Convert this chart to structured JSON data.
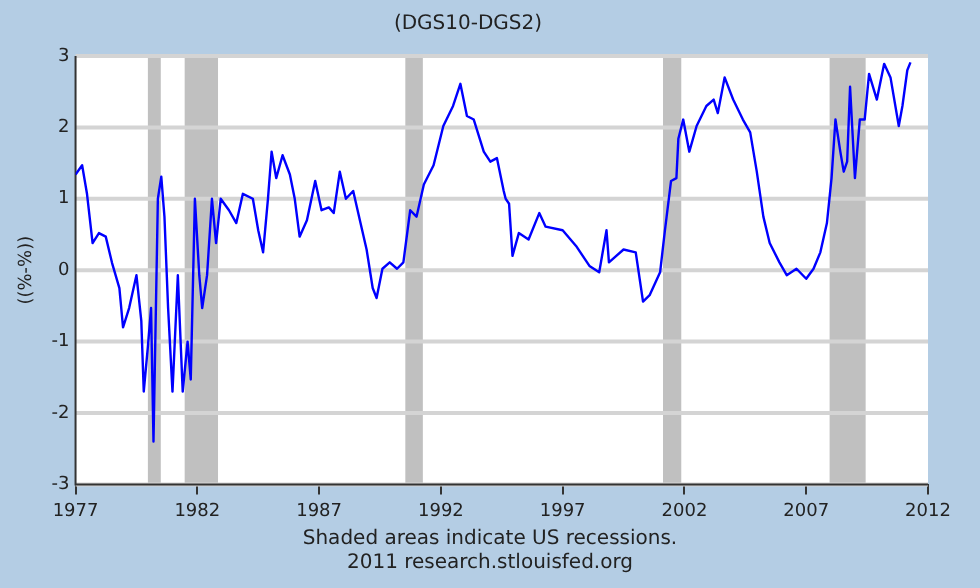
{
  "chart_data": {
    "type": "line",
    "title": "(DGS10-DGS2)",
    "ylabel": "((%-%))",
    "annotations": [
      "Shaded areas indicate US recessions.",
      "2011 research.stlouisfed.org"
    ],
    "xlim": [
      1977,
      2012
    ],
    "xticks": [
      1977,
      1982,
      1987,
      1992,
      1997,
      2002,
      2007,
      2012
    ],
    "ylim": [
      -3,
      3
    ],
    "yticks": [
      -3,
      -2,
      -1,
      0,
      1,
      2,
      3
    ],
    "grid": "y",
    "legend": false,
    "marker": "none",
    "line_style": "solid",
    "bands": [
      {
        "axis": "x",
        "from": 1979.97,
        "to": 1980.5,
        "color": "#c0c0c0"
      },
      {
        "axis": "x",
        "from": 1981.48,
        "to": 1982.85,
        "color": "#c0c0c0"
      },
      {
        "axis": "x",
        "from": 1990.54,
        "to": 1991.26,
        "color": "#c0c0c0"
      },
      {
        "axis": "x",
        "from": 2001.12,
        "to": 2001.87,
        "color": "#c0c0c0"
      },
      {
        "axis": "x",
        "from": 2007.96,
        "to": 2009.44,
        "color": "#c0c0c0"
      }
    ],
    "series": [
      {
        "color": "#0000ff",
        "x": [
          1977.0,
          1977.27,
          1977.47,
          1977.7,
          1977.96,
          1978.24,
          1978.5,
          1978.8,
          1978.95,
          1979.2,
          1979.5,
          1979.7,
          1979.8,
          1979.97,
          1980.1,
          1980.2,
          1980.38,
          1980.52,
          1980.65,
          1980.8,
          1980.98,
          1981.2,
          1981.4,
          1981.6,
          1981.73,
          1981.9,
          1982.08,
          1982.2,
          1982.4,
          1982.6,
          1982.77,
          1982.96,
          1983.3,
          1983.6,
          1983.87,
          1984.28,
          1984.5,
          1984.7,
          1984.9,
          1985.05,
          1985.24,
          1985.5,
          1985.8,
          1986.0,
          1986.2,
          1986.5,
          1986.84,
          1987.1,
          1987.4,
          1987.6,
          1987.85,
          1988.1,
          1988.4,
          1988.7,
          1988.95,
          1989.2,
          1989.36,
          1989.6,
          1989.9,
          1990.2,
          1990.46,
          1990.74,
          1991.0,
          1991.3,
          1991.7,
          1992.1,
          1992.5,
          1992.8,
          1993.07,
          1993.35,
          1993.76,
          1994.03,
          1994.3,
          1994.58,
          1994.66,
          1994.8,
          1994.94,
          1995.2,
          1995.6,
          1996.04,
          1996.3,
          1997.0,
          1997.55,
          1998.1,
          1998.5,
          1998.8,
          1998.9,
          1999.5,
          2000.0,
          2000.3,
          2000.57,
          2001.0,
          2001.2,
          2001.45,
          2001.67,
          2001.75,
          2001.95,
          2002.2,
          2002.5,
          2002.9,
          2003.2,
          2003.37,
          2003.65,
          2004.0,
          2004.4,
          2004.7,
          2004.97,
          2005.24,
          2005.5,
          2005.9,
          2006.2,
          2006.6,
          2007.0,
          2007.3,
          2007.58,
          2007.85,
          2008.04,
          2008.2,
          2008.4,
          2008.54,
          2008.68,
          2008.8,
          2009.0,
          2009.2,
          2009.4,
          2009.58,
          2009.9,
          2010.2,
          2010.46,
          2010.8,
          2010.95,
          2011.15,
          2011.28
        ],
        "values": [
          1.34,
          1.47,
          1.07,
          0.38,
          0.52,
          0.47,
          0.1,
          -0.25,
          -0.8,
          -0.53,
          -0.07,
          -0.71,
          -1.7,
          -1.07,
          -0.53,
          -2.4,
          1.0,
          1.31,
          0.75,
          -0.53,
          -1.7,
          -0.07,
          -1.7,
          -1.0,
          -1.53,
          1.0,
          -0.07,
          -0.53,
          -0.07,
          1.0,
          0.38,
          1.0,
          0.84,
          0.66,
          1.07,
          1.0,
          0.56,
          0.25,
          1.0,
          1.66,
          1.29,
          1.61,
          1.34,
          1.0,
          0.47,
          0.7,
          1.25,
          0.84,
          0.88,
          0.8,
          1.38,
          1.0,
          1.11,
          0.66,
          0.29,
          -0.25,
          -0.39,
          0.02,
          0.11,
          0.02,
          0.11,
          0.84,
          0.75,
          1.2,
          1.47,
          2.02,
          2.3,
          2.61,
          2.16,
          2.11,
          1.66,
          1.52,
          1.57,
          1.11,
          1.0,
          0.93,
          0.2,
          0.52,
          0.43,
          0.8,
          0.61,
          0.56,
          0.34,
          0.06,
          -0.03,
          0.56,
          0.11,
          0.29,
          0.25,
          -0.44,
          -0.35,
          -0.03,
          0.56,
          1.25,
          1.29,
          1.84,
          2.11,
          1.66,
          2.02,
          2.3,
          2.39,
          2.2,
          2.7,
          2.39,
          2.11,
          1.93,
          1.38,
          0.75,
          0.38,
          0.11,
          -0.07,
          0.02,
          -0.12,
          0.02,
          0.25,
          0.66,
          1.29,
          2.11,
          1.66,
          1.38,
          1.52,
          2.57,
          1.29,
          2.11,
          2.11,
          2.75,
          2.39,
          2.89,
          2.7,
          2.02,
          2.3,
          2.8,
          2.91
        ]
      }
    ]
  }
}
